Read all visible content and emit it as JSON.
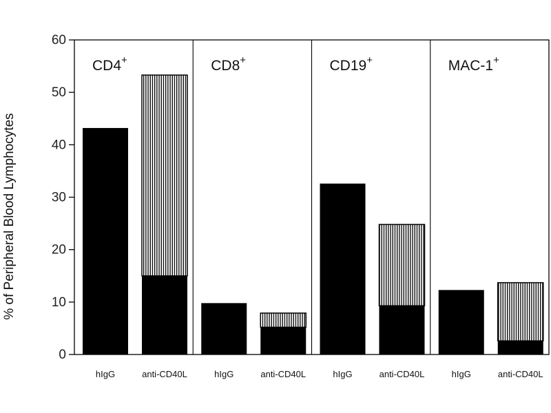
{
  "chart_data": {
    "type": "bar",
    "ylabel": "% of Peripheral Blood Lymphocytes",
    "xlabel": "",
    "ylim": [
      0,
      60
    ],
    "yticks": [
      "0",
      "10",
      "20",
      "30",
      "40",
      "50",
      "60"
    ],
    "grid": false,
    "stacked": true,
    "colors": {
      "solid": "#000000",
      "hatched": "#000000"
    },
    "panels": [
      {
        "label": "CD4",
        "superscript": "+",
        "bars": [
          {
            "category": "hIgG",
            "solid": 43.2,
            "total": 43.2
          },
          {
            "category": "anti-CD40L",
            "solid": 15,
            "total": 53.3
          }
        ]
      },
      {
        "label": "CD8",
        "superscript": "+",
        "bars": [
          {
            "category": "hIgG",
            "solid": 9.8,
            "total": 9.8
          },
          {
            "category": "anti-CD40L",
            "solid": 5.2,
            "total": 7.9
          }
        ]
      },
      {
        "label": "CD19",
        "superscript": "+",
        "bars": [
          {
            "category": "hIgG",
            "solid": 32.6,
            "total": 32.6
          },
          {
            "category": "anti-CD40L",
            "solid": 9.3,
            "total": 24.8
          }
        ]
      },
      {
        "label": "MAC-1",
        "superscript": "+",
        "bars": [
          {
            "category": "hIgG",
            "solid": 12.3,
            "total": 12.3
          },
          {
            "category": "anti-CD40L",
            "solid": 2.6,
            "total": 13.7
          }
        ]
      }
    ]
  }
}
